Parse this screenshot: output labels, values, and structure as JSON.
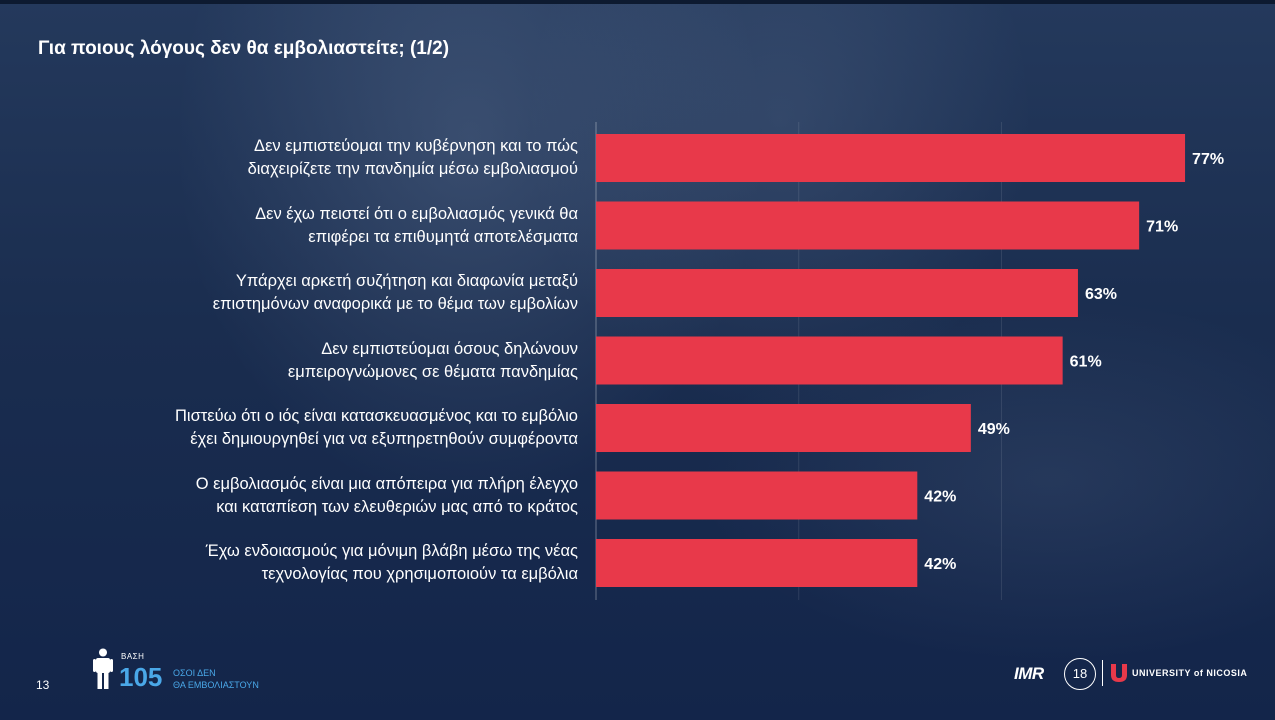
{
  "slide": {
    "title": "Για ποιους λόγους δεν θα εμβολιαστείτε; (1/2)",
    "page_number": "13"
  },
  "footer": {
    "base_label": "ΒΑΣΗ",
    "base_count": "105",
    "base_desc_line1": "ΟΣΟΙ ΔΕΝ",
    "base_desc_line2": "ΘΑ ΕΜΒΟΛΙΑΣΤΟΥΝ",
    "imr_logo": "IMR",
    "seal_text": "18",
    "university": "UNIVERSITY of NICOSIA"
  },
  "colors": {
    "bar": "#e8394a",
    "background": "#1a2d4f",
    "accent": "#4aa8e8"
  },
  "chart_data": {
    "type": "bar",
    "orientation": "horizontal",
    "categories": [
      [
        "Δεν εμπιστεύομαι την κυβέρνηση και το πώς",
        "διαχειρίζετε την πανδημία μέσω εμβολιασμού"
      ],
      [
        "Δεν έχω πειστεί ότι ο εμβολιασμός γενικά θα",
        "επιφέρει τα επιθυμητά αποτελέσματα"
      ],
      [
        "Υπάρχει αρκετή συζήτηση και διαφωνία μεταξύ",
        "επιστημόνων αναφορικά με το θέμα των εμβολίων"
      ],
      [
        "Δεν εμπιστεύομαι όσους δηλώνουν",
        "εμπειρογνώμονες σε θέματα πανδημίας"
      ],
      [
        "Πιστεύω ότι ο ιός είναι κατασκευασμένος και το εμβόλιο",
        "έχει δημιουργηθεί για να εξυπηρετηθούν συμφέροντα"
      ],
      [
        "Ο εμβολιασμός είναι μια απόπειρα για πλήρη έλεγχο",
        "και καταπίεση των ελευθεριών μας από το κράτος"
      ],
      [
        "Έχω ενδοιασμούς για μόνιμη βλάβη μέσω της νέας",
        "τεχνολογίας που χρησιμοποιούν τα εμβόλια"
      ]
    ],
    "values": [
      77,
      71,
      63,
      61,
      49,
      42,
      42
    ],
    "value_labels": [
      "77%",
      "71%",
      "63%",
      "61%",
      "49%",
      "42%",
      "42%"
    ],
    "xlim": [
      0,
      100
    ],
    "grid": true,
    "legend": "none"
  }
}
